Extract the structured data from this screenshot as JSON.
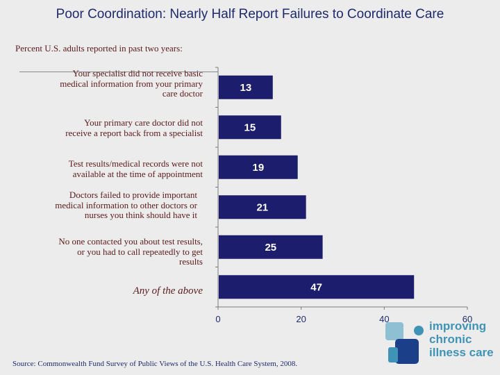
{
  "chart_data": {
    "type": "bar",
    "orientation": "horizontal",
    "title": "Poor Coordination: Nearly Half Report Failures to Coordinate Care",
    "subtitle": "Percent U.S. adults reported in past two years:",
    "categories": [
      "Your specialist did not receive basic medical information from your primary care doctor",
      "Your primary care doctor did not receive a report back from a specialist",
      "Test results/medical records were not available at the time of appointment",
      "Doctors failed to provide important medical information to other doctors or nurses you think should have it",
      "No one contacted you about test results, or you had to call repeatedly to get results",
      "Any of the above"
    ],
    "category_lines": [
      [
        "Your specialist did not receive basic",
        "medical information from your primary",
        "care doctor"
      ],
      [
        "Your primary care doctor did not",
        "receive a report back from a specialist"
      ],
      [
        "Test results/medical records were not",
        "available at the time of appointment"
      ],
      [
        "Doctors failed to provide important",
        "medical information to other doctors or",
        "nurses you think should have it"
      ],
      [
        "No one contacted you about test results,",
        "or you had to call repeatedly to get",
        "results"
      ],
      [
        "Any of the above"
      ]
    ],
    "values": [
      13,
      15,
      19,
      21,
      25,
      47
    ],
    "value_labels": [
      "13",
      "15",
      "19",
      "21",
      "25",
      "47"
    ],
    "xlim": [
      0,
      60
    ],
    "xticks": [
      0,
      20,
      40,
      60
    ],
    "xtick_labels": [
      "0",
      "20",
      "40",
      "60"
    ],
    "xlabel": "",
    "ylabel": "",
    "grid": false,
    "bar_color": "#1d1d6e"
  },
  "source": "Source: Commonwealth Fund Survey of Public Views of the U.S. Health Care System, 2008.",
  "logo": {
    "line1": "improving",
    "line2": "chronic",
    "line3": "illness care"
  },
  "colors": {
    "title": "#1e2a6b",
    "category_text": "#5b1a1a",
    "logo_blue": "#3f93b6",
    "logo_dark": "#1c3f8a"
  }
}
